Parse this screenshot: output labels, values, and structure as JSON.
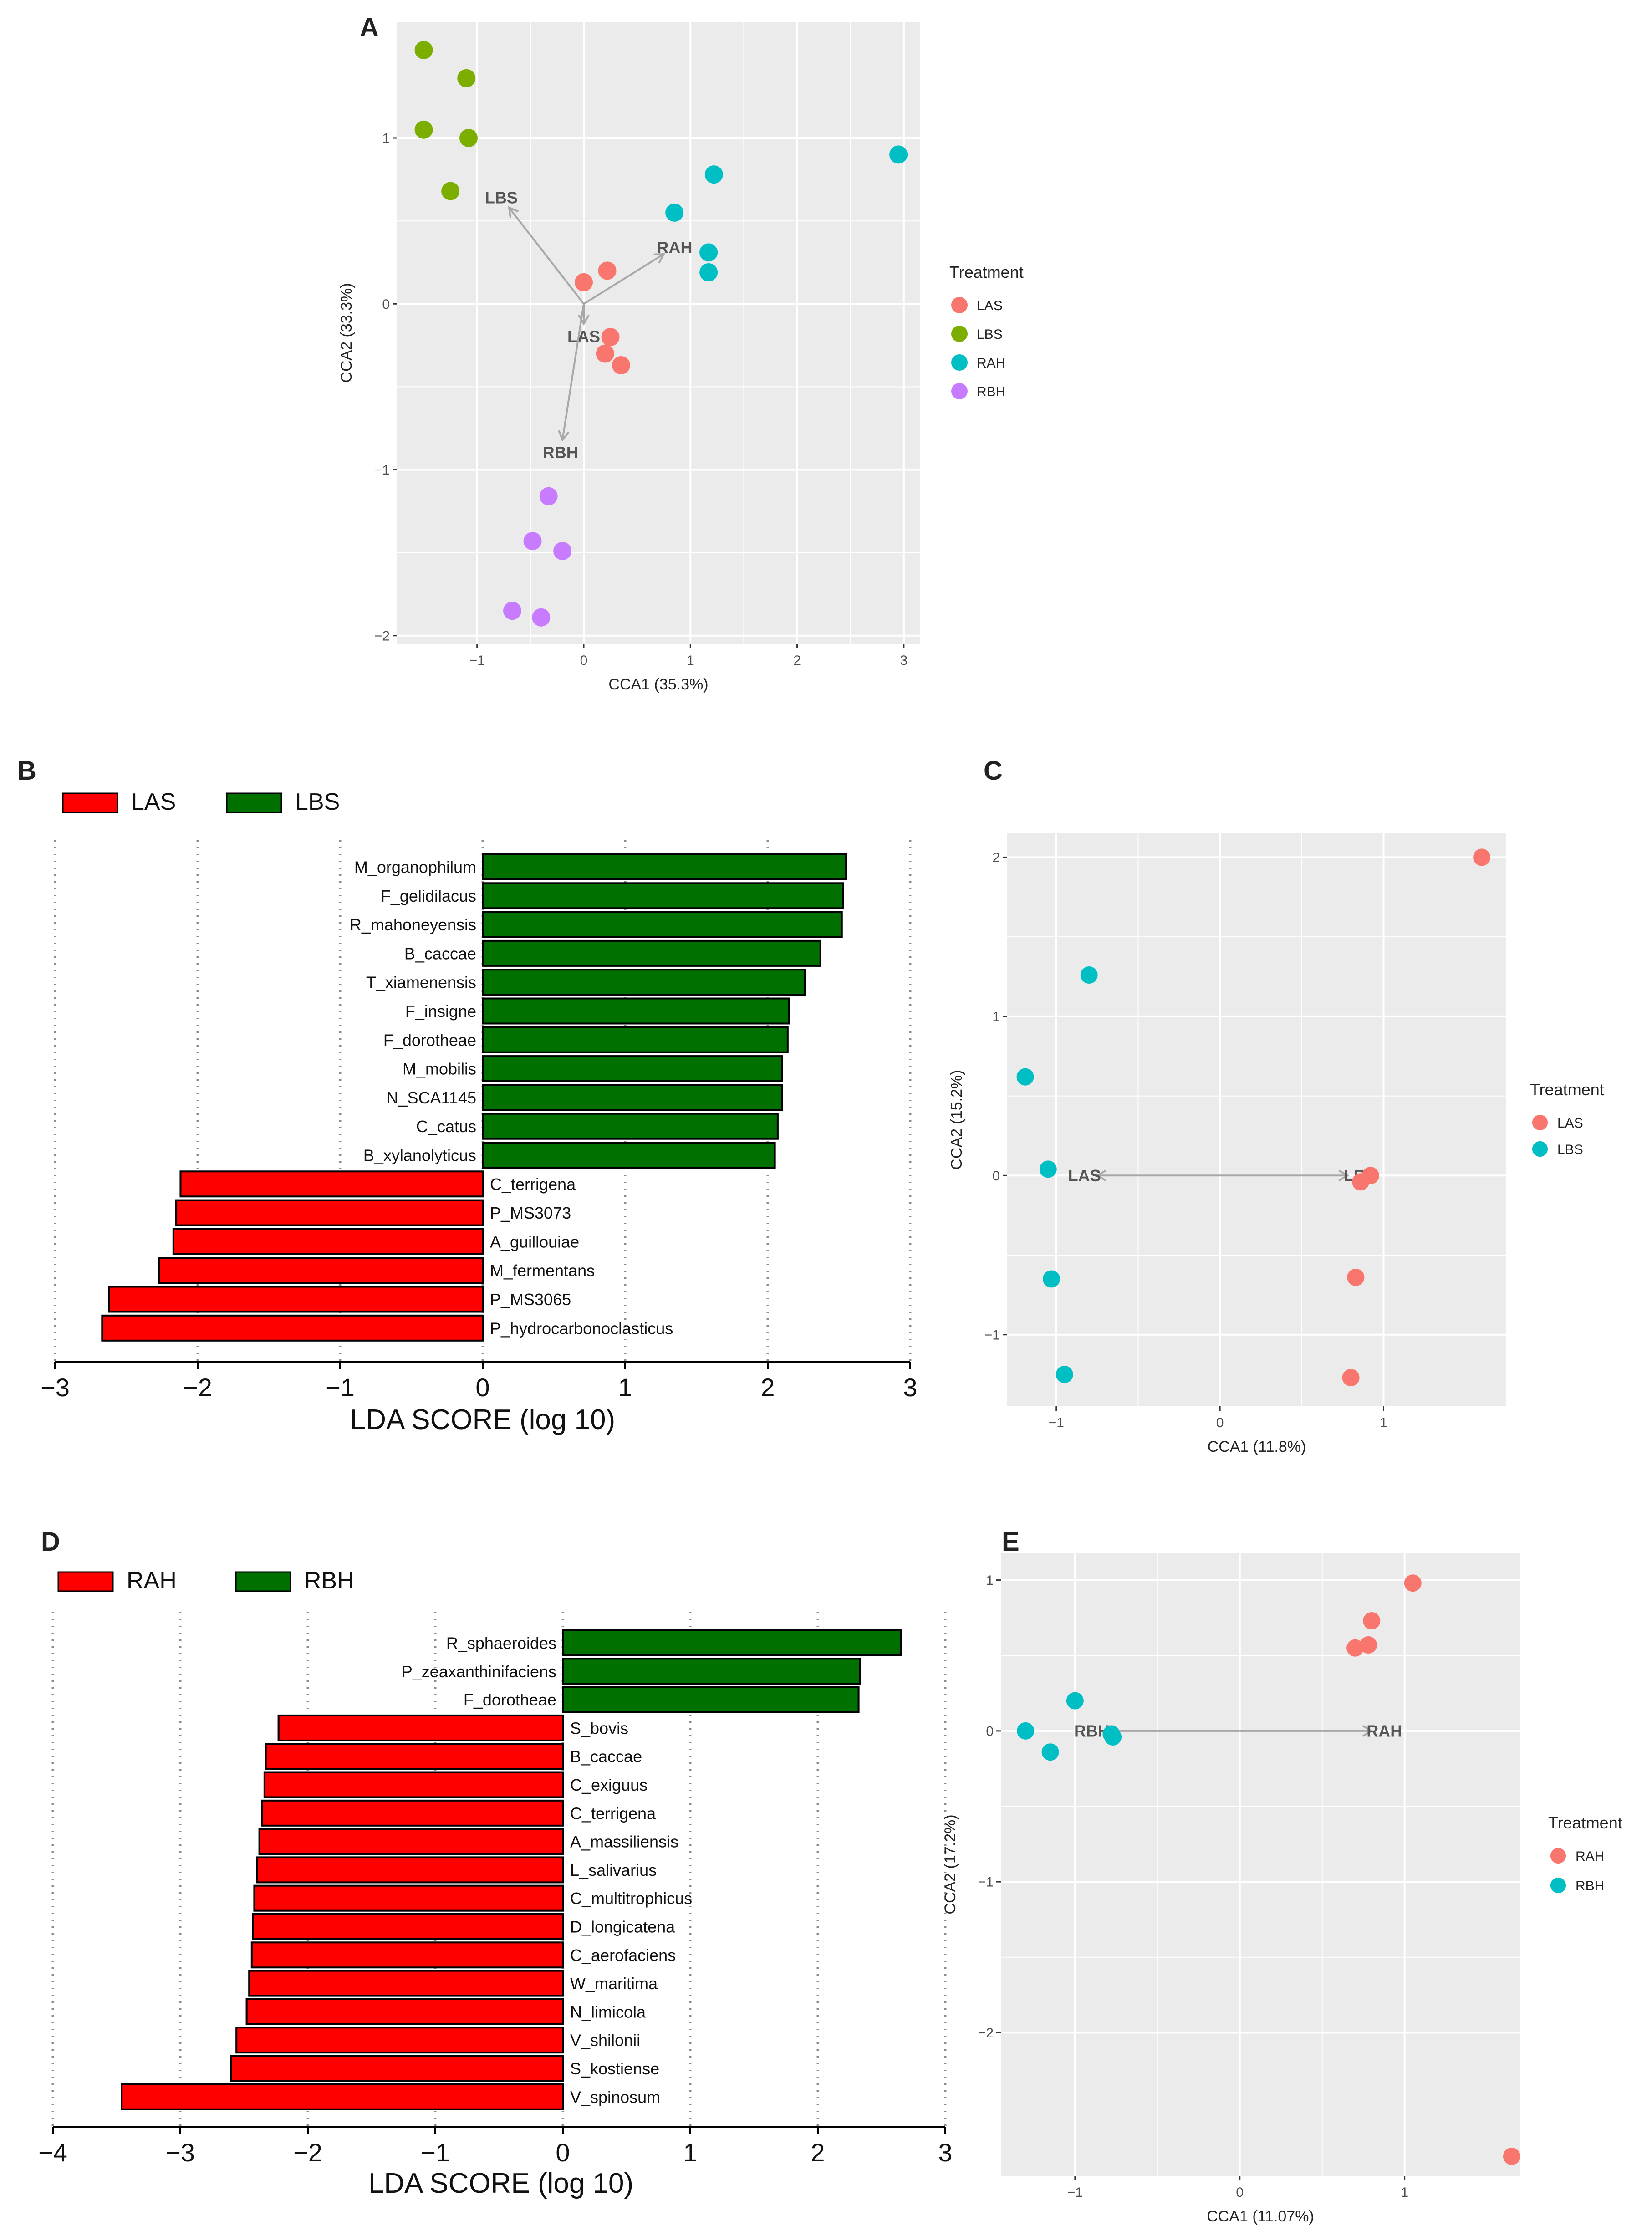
{
  "chart_data": [
    {
      "panel": "A",
      "type": "scatter",
      "xlabel": "CCA1 (35.3%)",
      "ylabel": "CCA2 (33.3%)",
      "xlim": [
        -1.75,
        3.15
      ],
      "ylim": [
        -2.05,
        1.7
      ],
      "xticks": [
        -1,
        0,
        1,
        2,
        3
      ],
      "yticks": [
        -2,
        -1,
        0,
        1
      ],
      "legend_title": "Treatment",
      "series": [
        {
          "name": "LAS",
          "color": "#F8766D",
          "points": [
            [
              0.0,
              0.13
            ],
            [
              0.22,
              0.2
            ],
            [
              0.25,
              -0.2
            ],
            [
              0.2,
              -0.3
            ],
            [
              0.35,
              -0.37
            ]
          ]
        },
        {
          "name": "LBS",
          "color": "#7CAE00",
          "points": [
            [
              -1.5,
              1.53
            ],
            [
              -1.1,
              1.36
            ],
            [
              -1.5,
              1.05
            ],
            [
              -1.08,
              1.0
            ],
            [
              -1.25,
              0.68
            ]
          ]
        },
        {
          "name": "RAH",
          "color": "#00BFC4",
          "points": [
            [
              2.95,
              0.9
            ],
            [
              1.22,
              0.78
            ],
            [
              0.85,
              0.55
            ],
            [
              1.17,
              0.31
            ],
            [
              1.17,
              0.19
            ]
          ]
        },
        {
          "name": "RBH",
          "color": "#C77CFF",
          "points": [
            [
              -0.33,
              -1.16
            ],
            [
              -0.48,
              -1.43
            ],
            [
              -0.2,
              -1.49
            ],
            [
              -0.67,
              -1.85
            ],
            [
              -0.4,
              -1.89
            ]
          ]
        }
      ],
      "arrows": [
        {
          "label": "LBS",
          "x": -0.7,
          "y": 0.58
        },
        {
          "label": "RAH",
          "x": 0.75,
          "y": 0.3
        },
        {
          "label": "LAS",
          "x": 0.0,
          "y": -0.12
        },
        {
          "label": "RBH",
          "x": -0.2,
          "y": -0.82
        }
      ]
    },
    {
      "panel": "B",
      "type": "bar",
      "orientation": "horizontal",
      "xlabel": "LDA SCORE (log 10)",
      "xlim": [
        -3,
        3
      ],
      "xticks": [
        -3,
        -2,
        -1,
        0,
        1,
        2,
        3
      ],
      "legend": [
        {
          "name": "LAS",
          "color": "#FF0000"
        },
        {
          "name": "LBS",
          "color": "#007000"
        }
      ],
      "categories": [
        "M_organophilum",
        "F_gelidilacus",
        "R_mahoneyensis",
        "B_caccae",
        "T_xiamenensis",
        "F_insigne",
        "F_dorotheae",
        "M_mobilis",
        "N_SCA1145",
        "C_catus",
        "B_xylanolyticus",
        "C_terrigena",
        "P_MS3073",
        "A_guillouiae",
        "M_fermentans",
        "P_MS3065",
        "P_hydrocarbonoclasticus"
      ],
      "values": [
        2.55,
        2.53,
        2.52,
        2.37,
        2.26,
        2.15,
        2.14,
        2.1,
        2.1,
        2.07,
        2.05,
        -2.12,
        -2.15,
        -2.17,
        -2.27,
        -2.62,
        -2.67
      ]
    },
    {
      "panel": "C",
      "type": "scatter",
      "xlabel": "CCA1 (11.8%)",
      "ylabel": "CCA2 (15.2%)",
      "xlim": [
        -1.3,
        1.75
      ],
      "ylim": [
        -1.45,
        2.15
      ],
      "xticks": [
        -1,
        0,
        1
      ],
      "yticks": [
        -1,
        0,
        1,
        2
      ],
      "legend_title": "Treatment",
      "series": [
        {
          "name": "LAS",
          "color": "#F8766D",
          "points": [
            [
              1.6,
              2.0
            ],
            [
              0.92,
              0.0
            ],
            [
              0.86,
              -0.04
            ],
            [
              0.83,
              -0.64
            ],
            [
              0.8,
              -1.27
            ]
          ]
        },
        {
          "name": "LBS",
          "color": "#00BFC4",
          "points": [
            [
              -0.8,
              1.26
            ],
            [
              -1.19,
              0.62
            ],
            [
              -1.05,
              0.04
            ],
            [
              -1.03,
              -0.65
            ],
            [
              -0.95,
              -1.25
            ]
          ]
        }
      ],
      "arrows": [
        {
          "label": "LAS",
          "x": -0.75,
          "y": 0.0
        },
        {
          "label": "LBS",
          "x": 0.78,
          "y": 0.0
        }
      ]
    },
    {
      "panel": "D",
      "type": "bar",
      "orientation": "horizontal",
      "xlabel": "LDA SCORE (log 10)",
      "xlim": [
        -4,
        3
      ],
      "xticks": [
        -4,
        -3,
        -2,
        -1,
        0,
        1,
        2,
        3
      ],
      "legend": [
        {
          "name": "RAH",
          "color": "#FF0000"
        },
        {
          "name": "RBH",
          "color": "#007000"
        }
      ],
      "categories": [
        "R_sphaeroides",
        "P_zeaxanthinifaciens",
        "F_dorotheae",
        "S_bovis",
        "B_caccae",
        "C_exiguus",
        "C_terrigena",
        "A_massiliensis",
        "L_salivarius",
        "C_multitrophicus",
        "D_longicatena",
        "C_aerofaciens",
        "W_maritima",
        "N_limicola",
        "V_shilonii",
        "S_kostiense",
        "V_spinosum"
      ],
      "values": [
        2.65,
        2.33,
        2.32,
        -2.23,
        -2.33,
        -2.34,
        -2.36,
        -2.38,
        -2.4,
        -2.42,
        -2.43,
        -2.44,
        -2.46,
        -2.48,
        -2.56,
        -2.6,
        -3.46
      ]
    },
    {
      "panel": "E",
      "type": "scatter",
      "xlabel": "CCA1 (11.07%)",
      "ylabel": "CCA2 (17.2%)",
      "xlim": [
        -1.45,
        1.7
      ],
      "ylim": [
        -2.95,
        1.18
      ],
      "xticks": [
        -1,
        0,
        1
      ],
      "yticks": [
        -2,
        -1,
        0,
        1
      ],
      "legend_title": "Treatment",
      "series": [
        {
          "name": "RAH",
          "color": "#F8766D",
          "points": [
            [
              1.05,
              0.98
            ],
            [
              0.8,
              0.73
            ],
            [
              0.78,
              0.57
            ],
            [
              0.7,
              0.55
            ],
            [
              1.65,
              -2.82
            ]
          ]
        },
        {
          "name": "RBH",
          "color": "#00BFC4",
          "points": [
            [
              -1.0,
              0.2
            ],
            [
              -1.3,
              0.0
            ],
            [
              -1.15,
              -0.14
            ],
            [
              -0.78,
              -0.02
            ],
            [
              -0.77,
              -0.04
            ]
          ]
        }
      ],
      "arrows": [
        {
          "label": "RBH",
          "x": -0.82,
          "y": 0.0
        },
        {
          "label": "RAH",
          "x": 0.8,
          "y": 0.0
        }
      ]
    }
  ],
  "panel_labels": [
    "A",
    "B",
    "C",
    "D",
    "E"
  ],
  "colors": {
    "panel_bg": "#EBEBEB",
    "grid": "#FFFFFF",
    "bar_neg": "#FF0000",
    "bar_pos": "#007000"
  }
}
